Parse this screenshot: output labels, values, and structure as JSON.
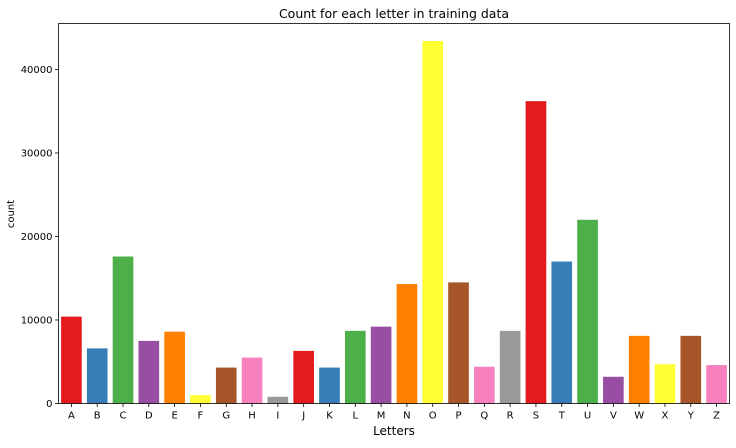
{
  "chart_data": {
    "type": "bar",
    "title": "Count for each letter in training data",
    "xlabel": "Letters",
    "ylabel": "count",
    "categories": [
      "A",
      "B",
      "C",
      "D",
      "E",
      "F",
      "G",
      "H",
      "I",
      "J",
      "K",
      "L",
      "M",
      "N",
      "O",
      "P",
      "Q",
      "R",
      "S",
      "T",
      "U",
      "V",
      "W",
      "X",
      "Y",
      "Z"
    ],
    "values": [
      10400,
      6600,
      17600,
      7500,
      8600,
      1000,
      4300,
      5500,
      800,
      6300,
      4300,
      8700,
      9200,
      14300,
      43400,
      14500,
      4400,
      8700,
      36200,
      17000,
      22000,
      3200,
      8100,
      4700,
      8100,
      4600
    ],
    "colors": [
      "#e41a1c",
      "#377eb8",
      "#4daf4a",
      "#984ea3",
      "#ff7f00",
      "#ffff33",
      "#a65628",
      "#f781bf",
      "#999999",
      "#e41a1c",
      "#377eb8",
      "#4daf4a",
      "#984ea3",
      "#ff7f00",
      "#ffff33",
      "#a65628",
      "#f781bf",
      "#999999",
      "#e41a1c",
      "#377eb8",
      "#4daf4a",
      "#984ea3",
      "#ff7f00",
      "#ffff33",
      "#a65628",
      "#f781bf"
    ],
    "ylim": [
      0,
      45500
    ],
    "yticks": [
      0,
      10000,
      20000,
      30000,
      40000
    ],
    "grid": false,
    "legend": "none"
  }
}
